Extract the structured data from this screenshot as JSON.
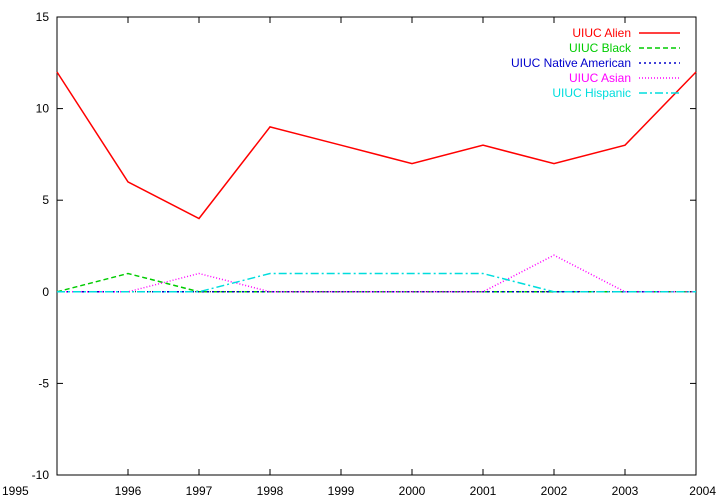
{
  "chart_data": {
    "type": "line",
    "title": "",
    "xlabel": "",
    "ylabel": "",
    "xlim": [
      1995,
      2004
    ],
    "ylim": [
      -10,
      15
    ],
    "x": [
      1995,
      1996,
      1997,
      1998,
      1999,
      2000,
      2001,
      2002,
      2003,
      2004
    ],
    "x_ticks": [
      "1995",
      "1996",
      "1997",
      "1998",
      "1999",
      "2000",
      "2001",
      "2002",
      "2003",
      "2004"
    ],
    "y_ticks": [
      "-10",
      "-5",
      "0",
      "5",
      "10",
      "15"
    ],
    "y_tick_values": [
      -10,
      -5,
      0,
      5,
      10,
      15
    ],
    "grid": false,
    "legend_position": "top-right",
    "series": [
      {
        "name": "UIUC Alien",
        "color": "#ff0000",
        "dash": "solid",
        "values": [
          12,
          6,
          4,
          9,
          8,
          7,
          8,
          7,
          8,
          12
        ]
      },
      {
        "name": "UIUC Black",
        "color": "#00cc00",
        "dash": "dashed",
        "values": [
          0,
          1,
          0,
          0,
          0,
          0,
          0,
          0,
          0,
          0
        ]
      },
      {
        "name": "UIUC Native American",
        "color": "#0000cc",
        "dash": "dotted",
        "values": [
          0,
          0,
          0,
          0,
          0,
          0,
          0,
          0,
          0,
          0
        ]
      },
      {
        "name": "UIUC Asian",
        "color": "#ff00ff",
        "dash": "dotted-fine",
        "values": [
          0,
          0,
          1,
          0,
          0,
          0,
          0,
          2,
          0,
          0
        ]
      },
      {
        "name": "UIUC Hispanic",
        "color": "#00dddd",
        "dash": "dash-dot",
        "values": [
          0,
          0,
          0,
          1,
          1,
          1,
          1,
          0,
          0,
          0
        ]
      }
    ]
  }
}
